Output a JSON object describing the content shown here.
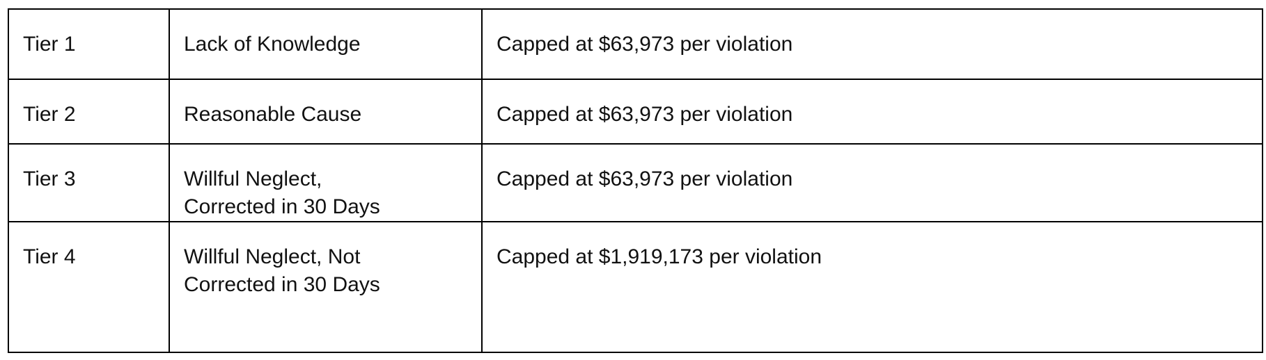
{
  "table": {
    "rows": [
      [
        "Tier 1",
        "Lack of Knowledge",
        "Capped at $63,973 per violation"
      ],
      [
        "Tier 2",
        "Reasonable Cause",
        "Capped at $63,973 per violation"
      ],
      [
        "Tier 3",
        [
          "Willful Neglect,",
          "Corrected in 30 Days"
        ],
        "Capped at $63,973 per violation"
      ],
      [
        "Tier 4",
        [
          "Willful Neglect, Not",
          "Corrected in 30 Days"
        ],
        "Capped at $1,919,173 per violation"
      ]
    ]
  }
}
